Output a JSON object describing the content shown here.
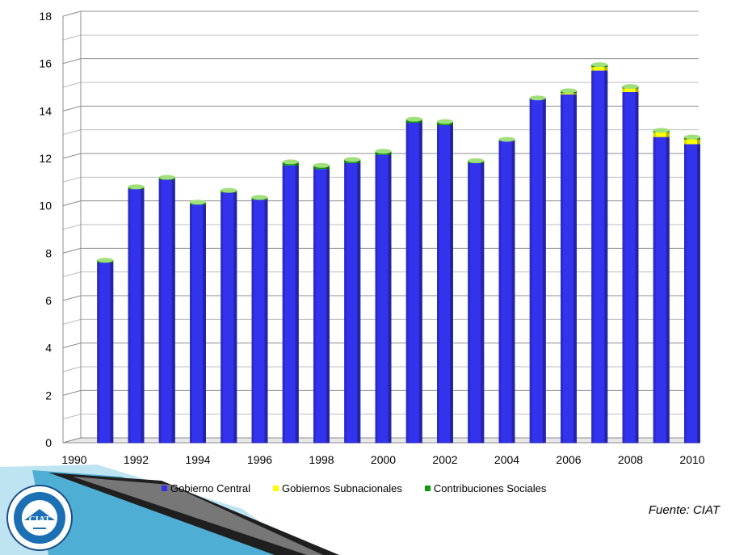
{
  "chart_data": {
    "type": "bar",
    "stacked": true,
    "x": [
      1991,
      1992,
      1993,
      1994,
      1995,
      1996,
      1997,
      1998,
      1999,
      2000,
      2001,
      2002,
      2003,
      2004,
      2005,
      2006,
      2007,
      2008,
      2009,
      2010
    ],
    "x_tick_labels": [
      "1990",
      "1992",
      "1994",
      "1996",
      "1998",
      "2000",
      "2002",
      "2004",
      "2006",
      "2008",
      "2010"
    ],
    "x_tick_values": [
      1990,
      1992,
      1994,
      1996,
      1998,
      2000,
      2002,
      2004,
      2006,
      2008,
      2010
    ],
    "y_tick_labels": [
      "0",
      "2",
      "4",
      "6",
      "8",
      "10",
      "12",
      "14",
      "16",
      "18"
    ],
    "ylim": [
      0,
      18
    ],
    "grid": true,
    "legend_position": "bottom",
    "series": [
      {
        "name": "Gobierno Central",
        "color": "#3333ee",
        "values": [
          7.6,
          10.7,
          11.1,
          10.05,
          10.55,
          10.25,
          11.7,
          11.55,
          11.8,
          12.15,
          13.5,
          13.4,
          11.8,
          12.75,
          14.5,
          14.7,
          15.7,
          14.8,
          12.9,
          12.6
        ]
      },
      {
        "name": "Gobiernos Subnacionales",
        "color": "#ffff00",
        "values": [
          0.0,
          0.0,
          0.0,
          0.0,
          0.0,
          0.0,
          0.0,
          0.0,
          0.0,
          0.0,
          0.0,
          0.0,
          0.0,
          0.0,
          0.0,
          0.05,
          0.15,
          0.15,
          0.2,
          0.2
        ]
      },
      {
        "name": "Contribuciones Sociales",
        "color": "#119911",
        "values": [
          0.1,
          0.1,
          0.1,
          0.1,
          0.1,
          0.1,
          0.15,
          0.15,
          0.15,
          0.15,
          0.15,
          0.15,
          0.1,
          0.05,
          0.05,
          0.1,
          0.1,
          0.08,
          0.08,
          0.1
        ]
      }
    ]
  },
  "source_label": "Fuente",
  "source_name": "CIAT",
  "logo_text": "CIAT"
}
